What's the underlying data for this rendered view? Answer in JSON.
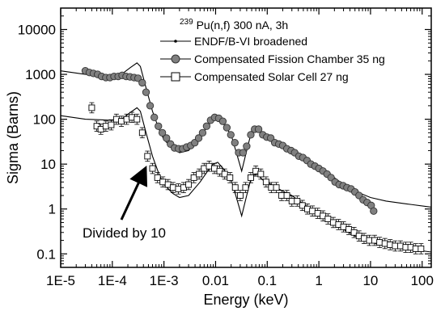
{
  "chart_data": {
    "type": "scatter",
    "title": "",
    "xlabel": "Energy (keV)",
    "ylabel": "Sigma (Barns)",
    "xscale": "log",
    "yscale": "log",
    "xlim": [
      1e-05,
      150
    ],
    "ylim": [
      0.05,
      30000
    ],
    "x_tick_values": [
      1e-05,
      0.0001,
      0.001,
      0.01,
      0.1,
      1,
      10,
      100
    ],
    "x_tick_labels": [
      "1E-5",
      "1E-4",
      "1E-3",
      "0.01",
      "0.1",
      "1",
      "10",
      "100"
    ],
    "y_tick_values": [
      0.1,
      1,
      10,
      100,
      1000,
      10000
    ],
    "y_tick_labels": [
      "0.1",
      "1",
      "10",
      "100",
      "1000",
      "10000"
    ],
    "legend": {
      "position": "top-right",
      "header_superscript": "239",
      "header_text": "Pu(n,f)   300 nA, 3h"
    },
    "annotation": {
      "text": "Divided by 10",
      "arrow_to": [
        0.00045,
        10
      ]
    },
    "series": [
      {
        "name": "ENDF/B-VI broadened",
        "style": "line",
        "color": "#000000",
        "points": [
          [
            1e-05,
            1200
          ],
          [
            3e-05,
            1000
          ],
          [
            0.0001,
            950
          ],
          [
            0.00015,
            1000
          ],
          [
            0.00022,
            1400
          ],
          [
            0.0003,
            1800
          ],
          [
            0.00035,
            1500
          ],
          [
            0.00045,
            500
          ],
          [
            0.0006,
            150
          ],
          [
            0.0008,
            60
          ],
          [
            0.001,
            35
          ],
          [
            0.0015,
            22
          ],
          [
            0.002,
            18
          ],
          [
            0.003,
            20
          ],
          [
            0.005,
            40
          ],
          [
            0.007,
            70
          ],
          [
            0.009,
            100
          ],
          [
            0.011,
            110
          ],
          [
            0.014,
            80
          ],
          [
            0.02,
            45
          ],
          [
            0.028,
            12
          ],
          [
            0.032,
            7
          ],
          [
            0.04,
            20
          ],
          [
            0.05,
            55
          ],
          [
            0.065,
            60
          ],
          [
            0.08,
            45
          ],
          [
            0.1,
            40
          ],
          [
            0.15,
            30
          ],
          [
            0.2,
            25
          ],
          [
            0.3,
            20
          ],
          [
            0.5,
            13
          ],
          [
            0.7,
            10
          ],
          [
            1,
            8
          ],
          [
            2,
            5
          ],
          [
            3,
            3.5
          ],
          [
            5,
            2.5
          ],
          [
            10,
            1.8
          ],
          [
            20,
            1.5
          ],
          [
            50,
            1.3
          ],
          [
            150,
            1.1
          ]
        ]
      },
      {
        "name": "Compensated Fission Chamber 35 ng",
        "style": "filled-circle",
        "color": "#808080",
        "points": [
          [
            3e-05,
            1200
          ],
          [
            3.6e-05,
            1100
          ],
          [
            4.3e-05,
            1050
          ],
          [
            5.2e-05,
            1000
          ],
          [
            6.2e-05,
            900
          ],
          [
            7.5e-05,
            850
          ],
          [
            9e-05,
            850
          ],
          [
            0.000108,
            900
          ],
          [
            0.00013,
            900
          ],
          [
            0.000155,
            950
          ],
          [
            0.000185,
            900
          ],
          [
            0.00022,
            880
          ],
          [
            0.000265,
            850
          ],
          [
            0.000315,
            820
          ],
          [
            0.00038,
            650
          ],
          [
            0.00045,
            400
          ],
          [
            0.00054,
            200
          ],
          [
            0.00065,
            110
          ],
          [
            0.00078,
            70
          ],
          [
            0.00093,
            50
          ],
          [
            0.00112,
            38
          ],
          [
            0.00134,
            28
          ],
          [
            0.0016,
            23
          ],
          [
            0.00192,
            22
          ],
          [
            0.0023,
            22
          ],
          [
            0.00275,
            24
          ],
          [
            0.0033,
            26
          ],
          [
            0.00395,
            30
          ],
          [
            0.0047,
            38
          ],
          [
            0.0056,
            50
          ],
          [
            0.0067,
            70
          ],
          [
            0.008,
            95
          ],
          [
            0.0096,
            110
          ],
          [
            0.0115,
            105
          ],
          [
            0.0138,
            90
          ],
          [
            0.0165,
            65
          ],
          [
            0.0197,
            45
          ],
          [
            0.0236,
            30
          ],
          [
            0.028,
            18
          ],
          [
            0.034,
            18
          ],
          [
            0.04,
            25
          ],
          [
            0.048,
            45
          ],
          [
            0.057,
            60
          ],
          [
            0.068,
            60
          ],
          [
            0.082,
            45
          ],
          [
            0.098,
            40
          ],
          [
            0.117,
            38
          ],
          [
            0.14,
            30
          ],
          [
            0.168,
            28
          ],
          [
            0.2,
            26
          ],
          [
            0.24,
            22
          ],
          [
            0.29,
            20
          ],
          [
            0.34,
            18
          ],
          [
            0.41,
            15
          ],
          [
            0.49,
            14
          ],
          [
            0.59,
            12
          ],
          [
            0.7,
            10
          ],
          [
            0.84,
            9
          ],
          [
            1,
            8
          ],
          [
            1.2,
            7
          ],
          [
            1.44,
            6
          ],
          [
            1.72,
            5
          ],
          [
            2.06,
            4
          ],
          [
            2.47,
            3.5
          ],
          [
            2.95,
            3.3
          ],
          [
            3.5,
            3
          ],
          [
            4.2,
            2.8
          ],
          [
            5,
            2.4
          ],
          [
            6,
            2
          ],
          [
            7.2,
            1.6
          ],
          [
            8.6,
            1.4
          ],
          [
            10.3,
            1.2
          ],
          [
            11.5,
            0.9
          ]
        ]
      },
      {
        "name": "Compensated Solar Cell 27 ng",
        "style": "open-square",
        "color": "#000000",
        "points": [
          [
            4e-05,
            180
          ],
          [
            5e-05,
            70
          ],
          [
            6e-05,
            60
          ],
          [
            7.5e-05,
            70
          ],
          [
            9.5e-05,
            75
          ],
          [
            0.00012,
            100
          ],
          [
            0.00015,
            90
          ],
          [
            0.00019,
            100
          ],
          [
            0.00024,
            110
          ],
          [
            0.0003,
            100
          ],
          [
            0.00038,
            50
          ],
          [
            0.00048,
            15
          ],
          [
            0.0006,
            8
          ],
          [
            0.00075,
            5
          ],
          [
            0.00095,
            4
          ],
          [
            0.0012,
            3.5
          ],
          [
            0.0015,
            3
          ],
          [
            0.0019,
            2.8
          ],
          [
            0.0024,
            3
          ],
          [
            0.003,
            3.5
          ],
          [
            0.0038,
            5
          ],
          [
            0.0048,
            6
          ],
          [
            0.006,
            8
          ],
          [
            0.0075,
            9
          ],
          [
            0.0095,
            8
          ],
          [
            0.012,
            7
          ],
          [
            0.015,
            6
          ],
          [
            0.019,
            5
          ],
          [
            0.024,
            3
          ],
          [
            0.03,
            2
          ],
          [
            0.038,
            3
          ],
          [
            0.048,
            5
          ],
          [
            0.06,
            7
          ],
          [
            0.075,
            6
          ],
          [
            0.095,
            4
          ],
          [
            0.12,
            3
          ],
          [
            0.15,
            3
          ],
          [
            0.19,
            2
          ],
          [
            0.24,
            2
          ],
          [
            0.3,
            1.5
          ],
          [
            0.38,
            1.5
          ],
          [
            0.48,
            1.2
          ],
          [
            0.6,
            1
          ],
          [
            0.75,
            0.9
          ],
          [
            0.95,
            0.8
          ],
          [
            1.2,
            0.7
          ],
          [
            1.5,
            0.6
          ],
          [
            1.9,
            0.5
          ],
          [
            2.4,
            0.45
          ],
          [
            3,
            0.4
          ],
          [
            3.8,
            0.35
          ],
          [
            4.8,
            0.3
          ],
          [
            6,
            0.25
          ],
          [
            7.5,
            0.22
          ],
          [
            9.5,
            0.2
          ],
          [
            12,
            0.2
          ],
          [
            15,
            0.18
          ],
          [
            19,
            0.17
          ],
          [
            24,
            0.16
          ],
          [
            30,
            0.15
          ],
          [
            38,
            0.15
          ],
          [
            48,
            0.14
          ],
          [
            60,
            0.14
          ],
          [
            75,
            0.13
          ],
          [
            95,
            0.13
          ]
        ]
      }
    ]
  }
}
